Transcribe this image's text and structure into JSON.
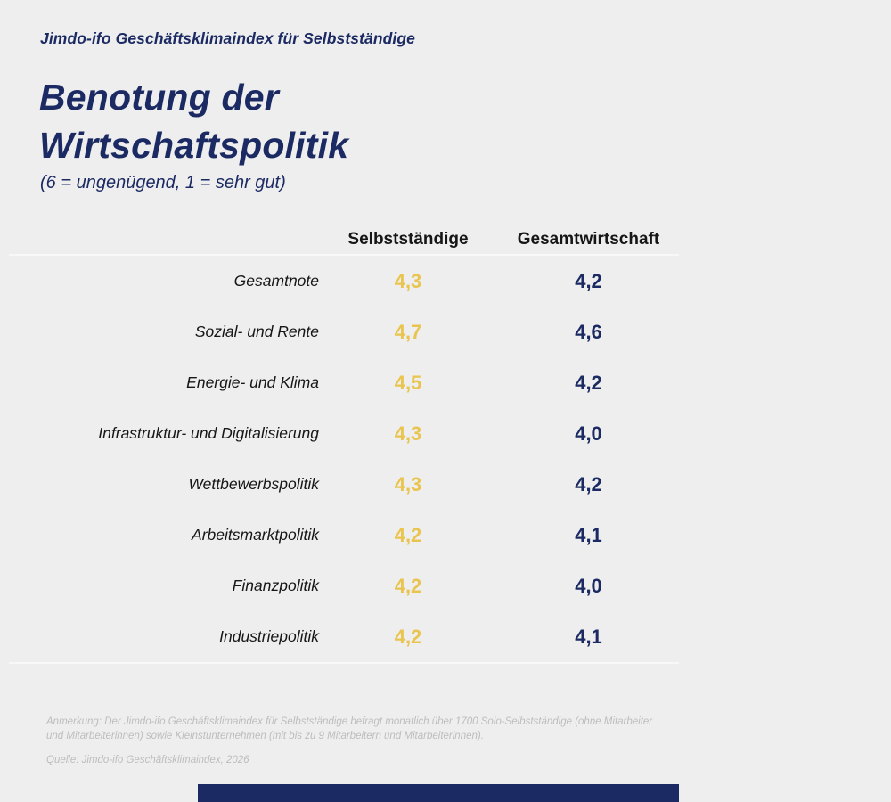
{
  "colors": {
    "background": "#EEEEEE",
    "navy": "#1B2A63",
    "gold": "#E9C44E",
    "label_dark": "#161616",
    "footnote_gray": "#BDBDBD",
    "rule_light": "#F8F8F8"
  },
  "header": {
    "kicker": "Jimdo-ifo Geschäftsklimaindex für Selbstständige",
    "title": "Benotung der Wirtschaftspolitik",
    "subtitle": "(6 = ungenügend, 1 = sehr gut)"
  },
  "table": {
    "col1": "Selbstständige",
    "col2": "Gesamtwirtschaft",
    "rows": [
      {
        "label": "Gesamtnote",
        "selbststaendige": "4,3",
        "gesamtwirtschaft": "4,2"
      },
      {
        "label": "Sozial- und Rente",
        "selbststaendige": "4,7",
        "gesamtwirtschaft": "4,6"
      },
      {
        "label": "Energie- und Klima",
        "selbststaendige": "4,5",
        "gesamtwirtschaft": "4,2"
      },
      {
        "label": "Infrastruktur- und Digitalisierung",
        "selbststaendige": "4,3",
        "gesamtwirtschaft": "4,0"
      },
      {
        "label": "Wettbewerbspolitik",
        "selbststaendige": "4,3",
        "gesamtwirtschaft": "4,2"
      },
      {
        "label": "Arbeitsmarktpolitik",
        "selbststaendige": "4,2",
        "gesamtwirtschaft": "4,1"
      },
      {
        "label": "Finanzpolitik",
        "selbststaendige": "4,2",
        "gesamtwirtschaft": "4,0"
      },
      {
        "label": "Industriepolitik",
        "selbststaendige": "4,2",
        "gesamtwirtschaft": "4,1"
      }
    ]
  },
  "chart_data": {
    "type": "table",
    "title": "Benotung der Wirtschaftspolitik",
    "subtitle": "(6 = ungenügend, 1 = sehr gut)",
    "kicker": "Jimdo-ifo Geschäftsklimaindex für Selbstständige",
    "categories": [
      "Gesamtnote",
      "Sozial- und Rente",
      "Energie- und Klima",
      "Infrastruktur- und Digitalisierung",
      "Wettbewerbspolitik",
      "Arbeitsmarktpolitik",
      "Finanzpolitik",
      "Industriepolitik"
    ],
    "series": [
      {
        "name": "Selbstständige",
        "color": "#E9C44E",
        "values": [
          4.3,
          4.7,
          4.5,
          4.3,
          4.3,
          4.2,
          4.2,
          4.2
        ]
      },
      {
        "name": "Gesamtwirtschaft",
        "color": "#1B2A63",
        "values": [
          4.2,
          4.6,
          4.2,
          4.0,
          4.2,
          4.1,
          4.0,
          4.1
        ]
      }
    ],
    "value_scale": "grades 1 (sehr gut) to 6 (ungenügend)",
    "value_format": "decimal comma, 1 fraction digit"
  },
  "footnotes": {
    "anmerkung": "Anmerkung: Der Jimdo-ifo Geschäftsklimaindex für Selbstständige befragt monatlich über 1700 Solo-Selbstständige (ohne Mitarbeiter und Mitarbeiterinnen) sowie Kleinstunternehmen (mit bis zu 9 Mitarbeitern und Mitarbeiterinnen).",
    "quelle": "Quelle: Jimdo-ifo Geschäftsklimaindex, 2026"
  }
}
